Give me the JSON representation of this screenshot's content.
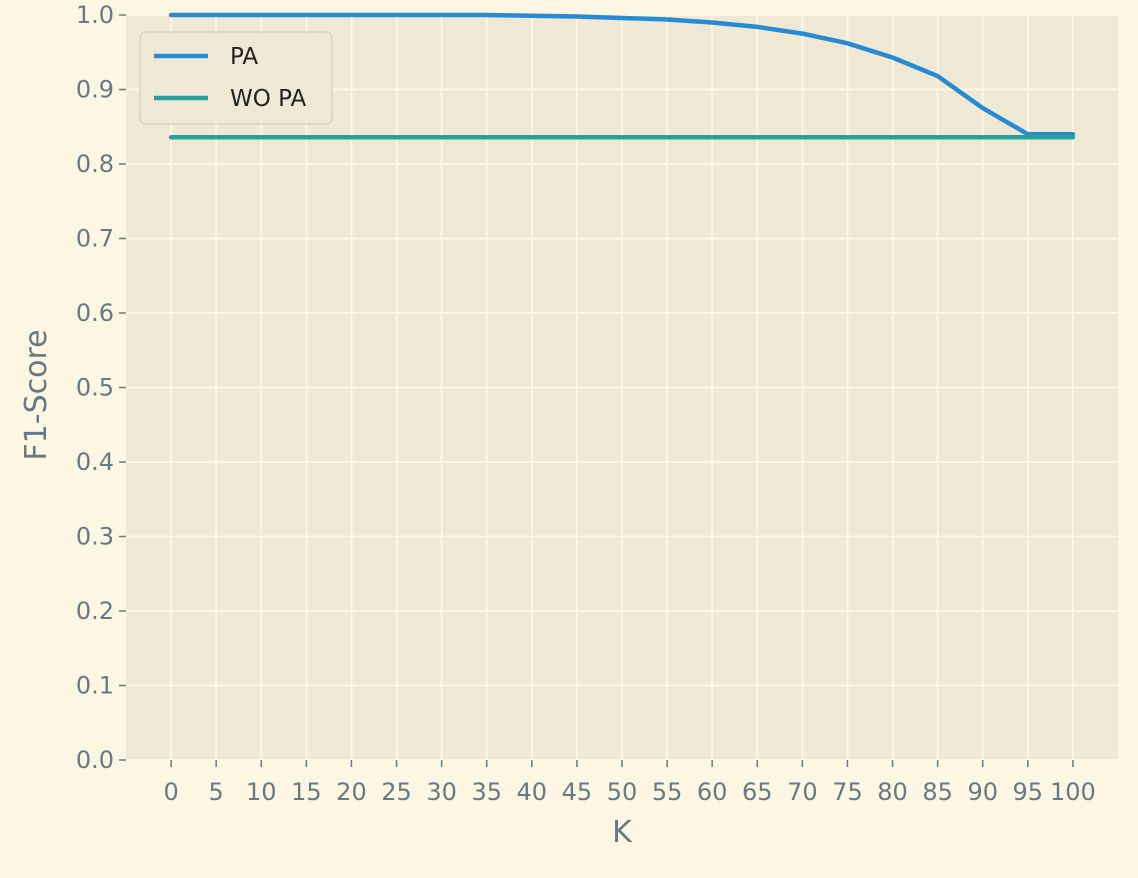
{
  "chart_data": {
    "type": "line",
    "title": "",
    "xlabel": "K",
    "ylabel": "F1-Score",
    "xlim": [
      -5,
      105
    ],
    "ylim": [
      0,
      1.0
    ],
    "x_ticks": [
      0,
      5,
      10,
      15,
      20,
      25,
      30,
      35,
      40,
      45,
      50,
      55,
      60,
      65,
      70,
      75,
      80,
      85,
      90,
      95,
      100
    ],
    "y_ticks": [
      0.0,
      0.1,
      0.2,
      0.3,
      0.4,
      0.5,
      0.6,
      0.7,
      0.8,
      0.9,
      1.0
    ],
    "grid": true,
    "legend_position": "top-left",
    "x": [
      0,
      5,
      10,
      15,
      20,
      25,
      30,
      35,
      40,
      45,
      50,
      55,
      60,
      65,
      70,
      75,
      80,
      85,
      90,
      95,
      100
    ],
    "series": [
      {
        "name": "PA",
        "color": "#268bd2",
        "values": [
          1.0,
          1.0,
          1.0,
          1.0,
          1.0,
          1.0,
          1.0,
          1.0,
          0.999,
          0.998,
          0.996,
          0.994,
          0.99,
          0.984,
          0.975,
          0.962,
          0.943,
          0.918,
          0.875,
          0.84,
          0.84
        ]
      },
      {
        "name": "WO PA",
        "color": "#2aa198",
        "values": [
          0.836,
          0.836,
          0.836,
          0.836,
          0.836,
          0.836,
          0.836,
          0.836,
          0.836,
          0.836,
          0.836,
          0.836,
          0.836,
          0.836,
          0.836,
          0.836,
          0.836,
          0.836,
          0.836,
          0.836,
          0.836
        ]
      }
    ],
    "colors": {
      "figure_background": "#fdf6e3",
      "plot_background": "#eee8d5",
      "grid": "#fdf6e3",
      "text": "#657b83"
    }
  }
}
